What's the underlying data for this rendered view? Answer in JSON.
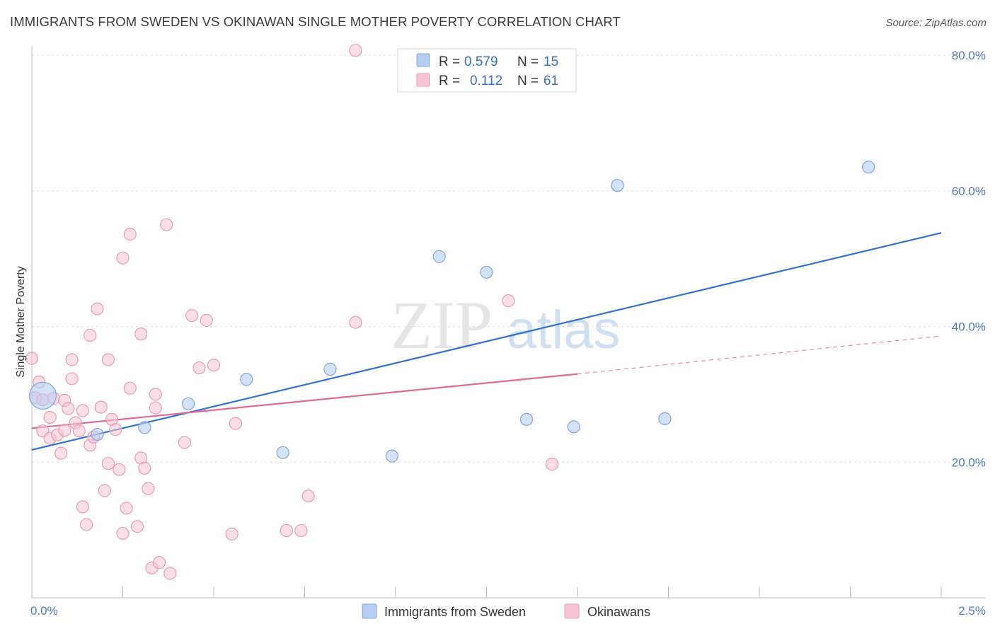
{
  "title": "IMMIGRANTS FROM SWEDEN VS OKINAWAN SINGLE MOTHER POVERTY CORRELATION CHART",
  "source": "Source: ZipAtlas.com",
  "watermark": {
    "zip": "ZIP",
    "atlas": "atlas"
  },
  "colors": {
    "sweden_fill": "#b5cff2",
    "sweden_stroke": "#7ea6dc",
    "sweden_line": "#2f72cf",
    "okinawan_fill": "#f7c5d4",
    "okinawan_stroke": "#e99ab4",
    "okinawan_line": "#e06a93",
    "tick_label": "#4a7cc9",
    "grid": "#dddddd"
  },
  "legend": {
    "rows": [
      {
        "r_label": "R =",
        "r_value": "0.579",
        "n_label": "N =",
        "n_value": "15"
      },
      {
        "r_label": "R =",
        "r_value": "0.112",
        "n_label": "N =",
        "n_value": "61"
      }
    ]
  },
  "chart_data": {
    "type": "scatter",
    "title": "IMMIGRANTS FROM SWEDEN VS OKINAWAN SINGLE MOTHER POVERTY CORRELATION CHART",
    "xlabel": "",
    "ylabel": "Single Mother Poverty",
    "xlim": [
      0,
      2.5
    ],
    "ylim": [
      0,
      80
    ],
    "x_tick_labels": [
      "0.0%",
      "2.5%"
    ],
    "y_ticks": [
      20,
      40,
      60,
      80
    ],
    "y_tick_labels": [
      "20.0%",
      "40.0%",
      "60.0%",
      "80.0%"
    ],
    "grid": true,
    "legend_position": "top-center",
    "series": [
      {
        "name": "Immigrants from Sweden",
        "R": 0.579,
        "N": 15,
        "points": [
          {
            "x": 0.03,
            "y": 29.8,
            "big": true
          },
          {
            "x": 0.18,
            "y": 24.1
          },
          {
            "x": 0.31,
            "y": 25.1
          },
          {
            "x": 0.43,
            "y": 28.6
          },
          {
            "x": 0.59,
            "y": 32.2
          },
          {
            "x": 0.69,
            "y": 21.4
          },
          {
            "x": 0.82,
            "y": 33.7
          },
          {
            "x": 0.99,
            "y": 20.9
          },
          {
            "x": 1.12,
            "y": 50.3
          },
          {
            "x": 1.25,
            "y": 48.0
          },
          {
            "x": 1.36,
            "y": 26.3
          },
          {
            "x": 1.49,
            "y": 25.2
          },
          {
            "x": 1.61,
            "y": 60.8
          },
          {
            "x": 1.74,
            "y": 26.4
          },
          {
            "x": 2.3,
            "y": 63.5
          }
        ],
        "trend": {
          "x0": 0.0,
          "y0": 21.8,
          "x1": 2.5,
          "y1": 53.8
        }
      },
      {
        "name": "Okinawans",
        "R": 0.112,
        "N": 61,
        "points": [
          {
            "x": 0.0,
            "y": 35.3
          },
          {
            "x": 0.02,
            "y": 31.8
          },
          {
            "x": 0.01,
            "y": 29.5
          },
          {
            "x": 0.03,
            "y": 29.2
          },
          {
            "x": 0.06,
            "y": 29.4
          },
          {
            "x": 0.03,
            "y": 24.6
          },
          {
            "x": 0.05,
            "y": 23.5
          },
          {
            "x": 0.05,
            "y": 26.6
          },
          {
            "x": 0.07,
            "y": 24.0
          },
          {
            "x": 0.08,
            "y": 21.3
          },
          {
            "x": 0.09,
            "y": 24.7
          },
          {
            "x": 0.09,
            "y": 29.1
          },
          {
            "x": 0.1,
            "y": 27.9
          },
          {
            "x": 0.11,
            "y": 32.3
          },
          {
            "x": 0.11,
            "y": 35.1
          },
          {
            "x": 0.12,
            "y": 25.8
          },
          {
            "x": 0.13,
            "y": 24.6
          },
          {
            "x": 0.14,
            "y": 27.6
          },
          {
            "x": 0.14,
            "y": 13.4
          },
          {
            "x": 0.15,
            "y": 10.8
          },
          {
            "x": 0.16,
            "y": 38.7
          },
          {
            "x": 0.16,
            "y": 22.5
          },
          {
            "x": 0.17,
            "y": 23.7
          },
          {
            "x": 0.18,
            "y": 42.6
          },
          {
            "x": 0.19,
            "y": 28.1
          },
          {
            "x": 0.2,
            "y": 15.8
          },
          {
            "x": 0.21,
            "y": 19.8
          },
          {
            "x": 0.21,
            "y": 35.1
          },
          {
            "x": 0.22,
            "y": 26.3
          },
          {
            "x": 0.23,
            "y": 24.8
          },
          {
            "x": 0.24,
            "y": 18.9
          },
          {
            "x": 0.25,
            "y": 50.1
          },
          {
            "x": 0.25,
            "y": 9.5
          },
          {
            "x": 0.26,
            "y": 13.2
          },
          {
            "x": 0.27,
            "y": 53.6
          },
          {
            "x": 0.27,
            "y": 30.9
          },
          {
            "x": 0.29,
            "y": 10.5
          },
          {
            "x": 0.3,
            "y": 20.6
          },
          {
            "x": 0.3,
            "y": 38.9
          },
          {
            "x": 0.31,
            "y": 19.1
          },
          {
            "x": 0.32,
            "y": 16.1
          },
          {
            "x": 0.33,
            "y": 4.4
          },
          {
            "x": 0.34,
            "y": 28.0
          },
          {
            "x": 0.34,
            "y": 30.0
          },
          {
            "x": 0.35,
            "y": 5.2
          },
          {
            "x": 0.37,
            "y": 55.0
          },
          {
            "x": 0.38,
            "y": 3.6
          },
          {
            "x": 0.42,
            "y": 22.9
          },
          {
            "x": 0.44,
            "y": 41.6
          },
          {
            "x": 0.46,
            "y": 33.9
          },
          {
            "x": 0.48,
            "y": 40.9
          },
          {
            "x": 0.5,
            "y": 34.3
          },
          {
            "x": 0.55,
            "y": 9.4
          },
          {
            "x": 0.56,
            "y": 25.7
          },
          {
            "x": 0.7,
            "y": 9.9
          },
          {
            "x": 0.74,
            "y": 9.9
          },
          {
            "x": 0.76,
            "y": 15.0
          },
          {
            "x": 0.89,
            "y": 80.7
          },
          {
            "x": 0.89,
            "y": 40.6
          },
          {
            "x": 1.31,
            "y": 43.8
          },
          {
            "x": 1.43,
            "y": 19.7
          }
        ],
        "trend_solid": {
          "x0": 0.0,
          "y0": 25.0,
          "x1": 1.5,
          "y1": 33.0
        },
        "trend_dashed": {
          "x0": 1.5,
          "y0": 33.0,
          "x1": 2.5,
          "y1": 38.6
        }
      }
    ]
  }
}
